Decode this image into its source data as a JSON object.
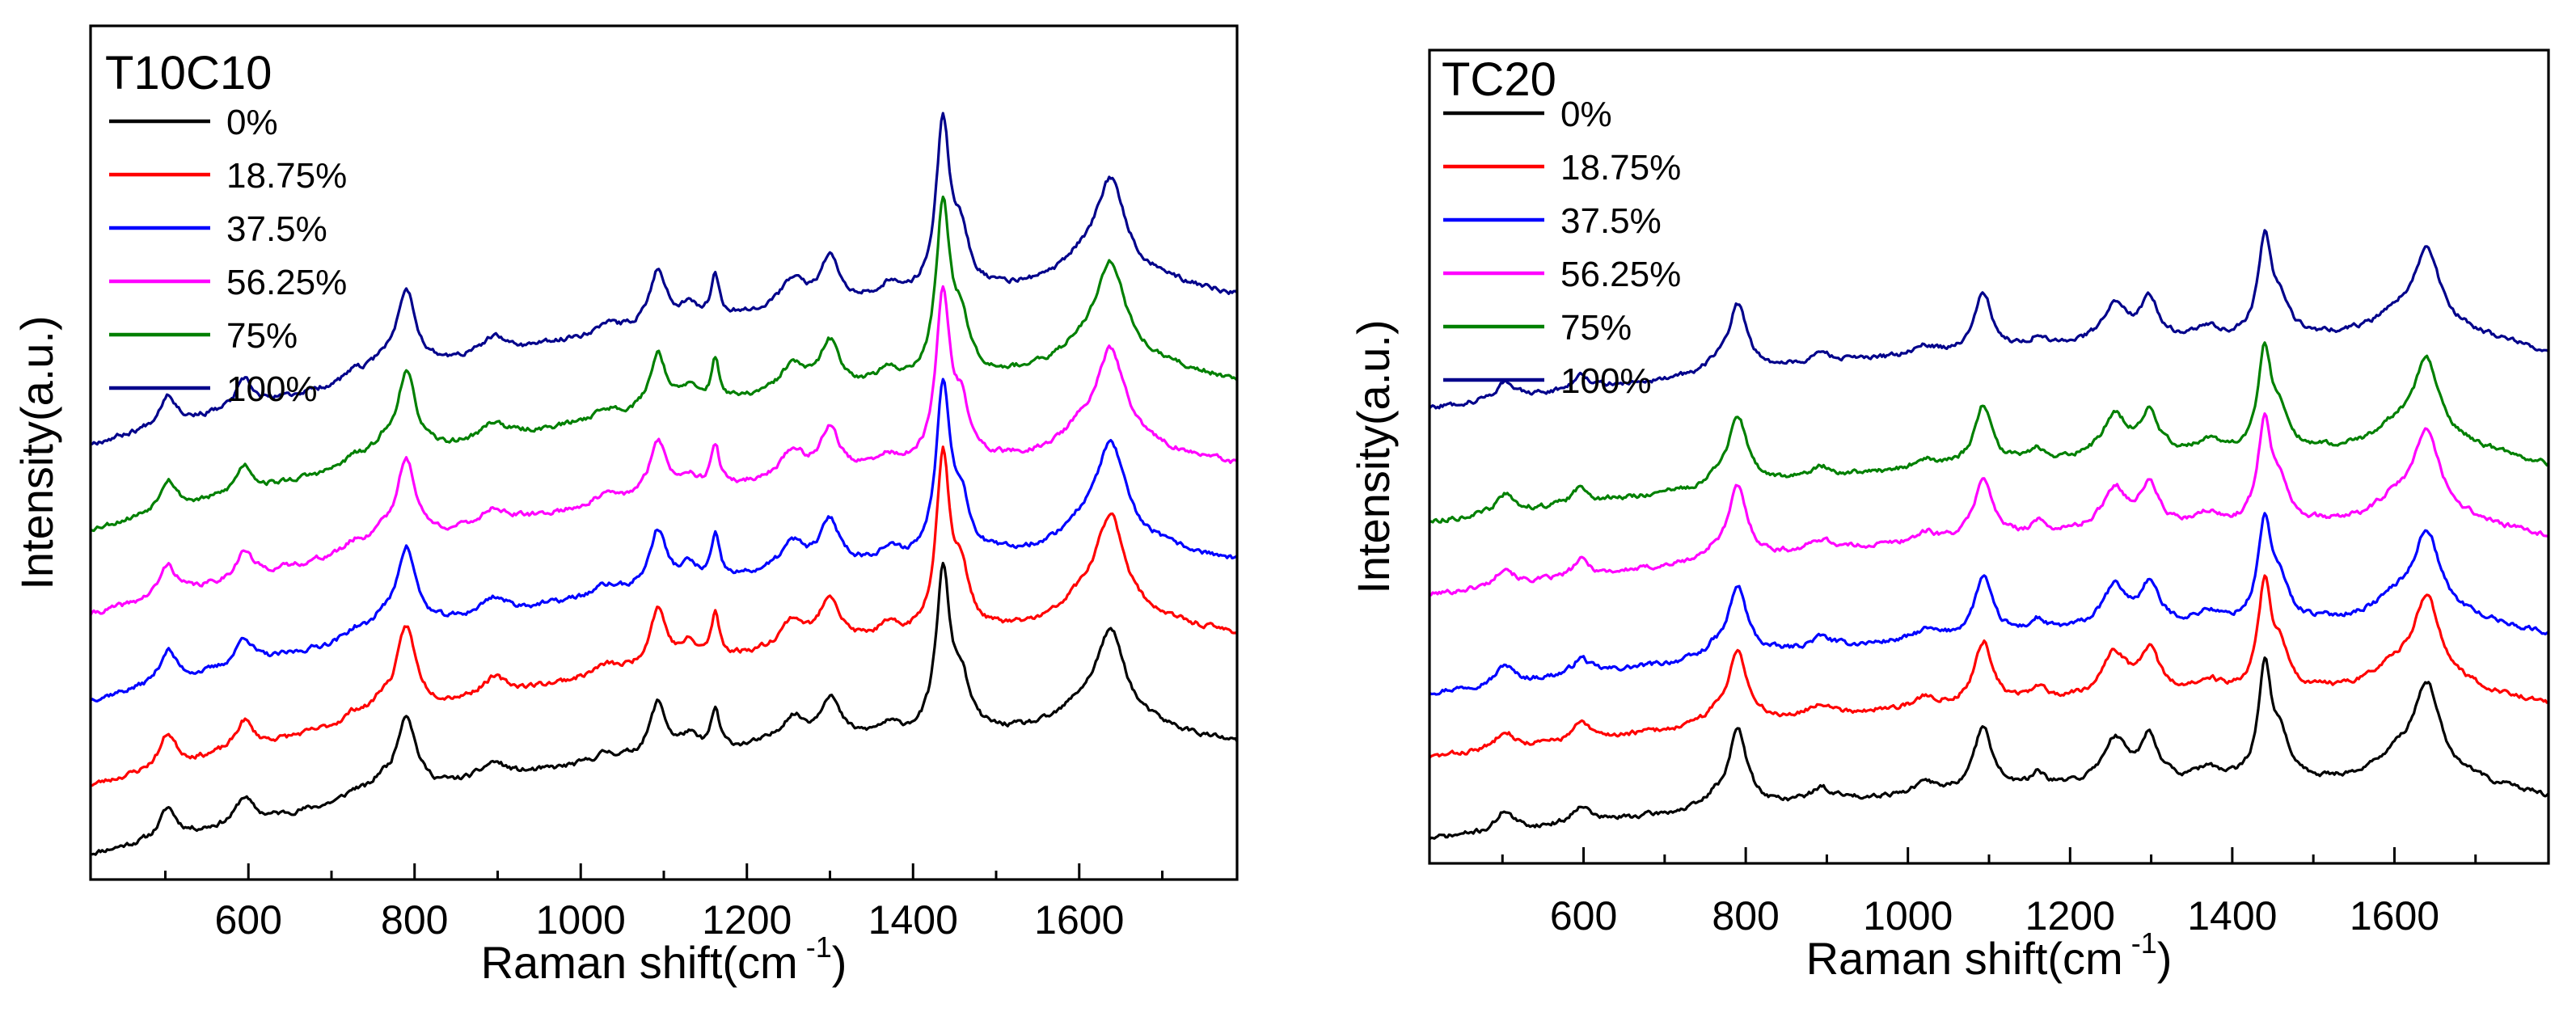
{
  "figure": {
    "caption": ""
  },
  "chart_data": [
    {
      "type": "line",
      "title": "T10C10",
      "xlabel": "Raman shift(cm",
      "xlabel_sup": "-1",
      "xlabel_close": ")",
      "ylabel": "Intensity(a.u.)",
      "xlim": [
        410,
        1790
      ],
      "ylim": [
        0,
        1
      ],
      "xticks": [
        600,
        800,
        1000,
        1200,
        1400,
        1600
      ],
      "yticks_visible": false,
      "legend_position": "top-left",
      "peaks": [
        {
          "x": 503,
          "h": 0.35,
          "w": 12
        },
        {
          "x": 595,
          "h": 0.3,
          "w": 12
        },
        {
          "x": 728,
          "h": 0.1,
          "w": 14
        },
        {
          "x": 760,
          "h": 0.14,
          "w": 12
        },
        {
          "x": 790,
          "h": 0.9,
          "w": 14
        },
        {
          "x": 895,
          "h": 0.18,
          "w": 18
        },
        {
          "x": 1030,
          "h": 0.1,
          "w": 18
        },
        {
          "x": 1093,
          "h": 0.62,
          "w": 12
        },
        {
          "x": 1130,
          "h": 0.18,
          "w": 12
        },
        {
          "x": 1162,
          "h": 0.45,
          "w": 6
        },
        {
          "x": 1255,
          "h": 0.3,
          "w": 18
        },
        {
          "x": 1300,
          "h": 0.5,
          "w": 14
        },
        {
          "x": 1370,
          "h": 0.12,
          "w": 16
        },
        {
          "x": 1436,
          "h": 1.85,
          "w": 10
        },
        {
          "x": 1458,
          "h": 0.55,
          "w": 12
        },
        {
          "x": 1600,
          "h": 0.2,
          "w": 28
        },
        {
          "x": 1638,
          "h": 1.1,
          "w": 22
        }
      ],
      "series": [
        {
          "name": "0%",
          "color": "#000000",
          "offset": 0.03,
          "slope": 0.42,
          "peak_scale": 0.2,
          "seed": 11
        },
        {
          "name": "18.75%",
          "color": "#ff0000",
          "offset": 0.11,
          "slope": 0.56,
          "peak_scale": 0.22,
          "seed": 23
        },
        {
          "name": "37.5%",
          "color": "#0000ff",
          "offset": 0.21,
          "slope": 0.52,
          "peak_scale": 0.215,
          "seed": 37
        },
        {
          "name": "56.25%",
          "color": "#ff00ff",
          "offset": 0.31,
          "slope": 0.56,
          "peak_scale": 0.21,
          "seed": 41
        },
        {
          "name": "75%",
          "color": "#008000",
          "offset": 0.41,
          "slope": 0.56,
          "peak_scale": 0.215,
          "seed": 53
        },
        {
          "name": "100%",
          "color": "#00008b",
          "offset": 0.51,
          "slope": 0.56,
          "peak_scale": 0.21,
          "seed": 67
        }
      ]
    },
    {
      "type": "line",
      "title": "TC20",
      "xlabel": "Raman shift(cm",
      "xlabel_sup": "-1",
      "xlabel_close": ")",
      "ylabel": "Intensity(a.u.)",
      "xlim": [
        410,
        1790
      ],
      "ylim": [
        0,
        1
      ],
      "xticks": [
        600,
        800,
        1000,
        1200,
        1400,
        1600
      ],
      "yticks_visible": false,
      "legend_position": "top-left",
      "peaks": [
        {
          "x": 503,
          "h": 0.25,
          "w": 12
        },
        {
          "x": 597,
          "h": 0.22,
          "w": 12
        },
        {
          "x": 760,
          "h": 0.1,
          "w": 12
        },
        {
          "x": 790,
          "h": 0.95,
          "w": 14
        },
        {
          "x": 893,
          "h": 0.15,
          "w": 16
        },
        {
          "x": 1022,
          "h": 0.12,
          "w": 16
        },
        {
          "x": 1093,
          "h": 0.8,
          "w": 13
        },
        {
          "x": 1160,
          "h": 0.15,
          "w": 10
        },
        {
          "x": 1255,
          "h": 0.55,
          "w": 18
        },
        {
          "x": 1298,
          "h": 0.55,
          "w": 14
        },
        {
          "x": 1370,
          "h": 0.15,
          "w": 16
        },
        {
          "x": 1440,
          "h": 1.35,
          "w": 10
        },
        {
          "x": 1460,
          "h": 0.45,
          "w": 12
        },
        {
          "x": 1600,
          "h": 0.25,
          "w": 28
        },
        {
          "x": 1640,
          "h": 1.15,
          "w": 20
        }
      ],
      "series": [
        {
          "name": "0%",
          "color": "#000000",
          "offset": 0.03,
          "slope": 0.2,
          "peak_scale": 0.2,
          "seed": 71
        },
        {
          "name": "18.75%",
          "color": "#ff0000",
          "offset": 0.13,
          "slope": 0.24,
          "peak_scale": 0.19,
          "seed": 83
        },
        {
          "name": "37.5%",
          "color": "#0000ff",
          "offset": 0.21,
          "slope": 0.26,
          "peak_scale": 0.18,
          "seed": 97
        },
        {
          "name": "56.25%",
          "color": "#ff00ff",
          "offset": 0.33,
          "slope": 0.26,
          "peak_scale": 0.185,
          "seed": 101
        },
        {
          "name": "75%",
          "color": "#008000",
          "offset": 0.42,
          "slope": 0.26,
          "peak_scale": 0.18,
          "seed": 113
        },
        {
          "name": "100%",
          "color": "#00008b",
          "offset": 0.56,
          "slope": 0.26,
          "peak_scale": 0.175,
          "seed": 127
        }
      ]
    }
  ]
}
